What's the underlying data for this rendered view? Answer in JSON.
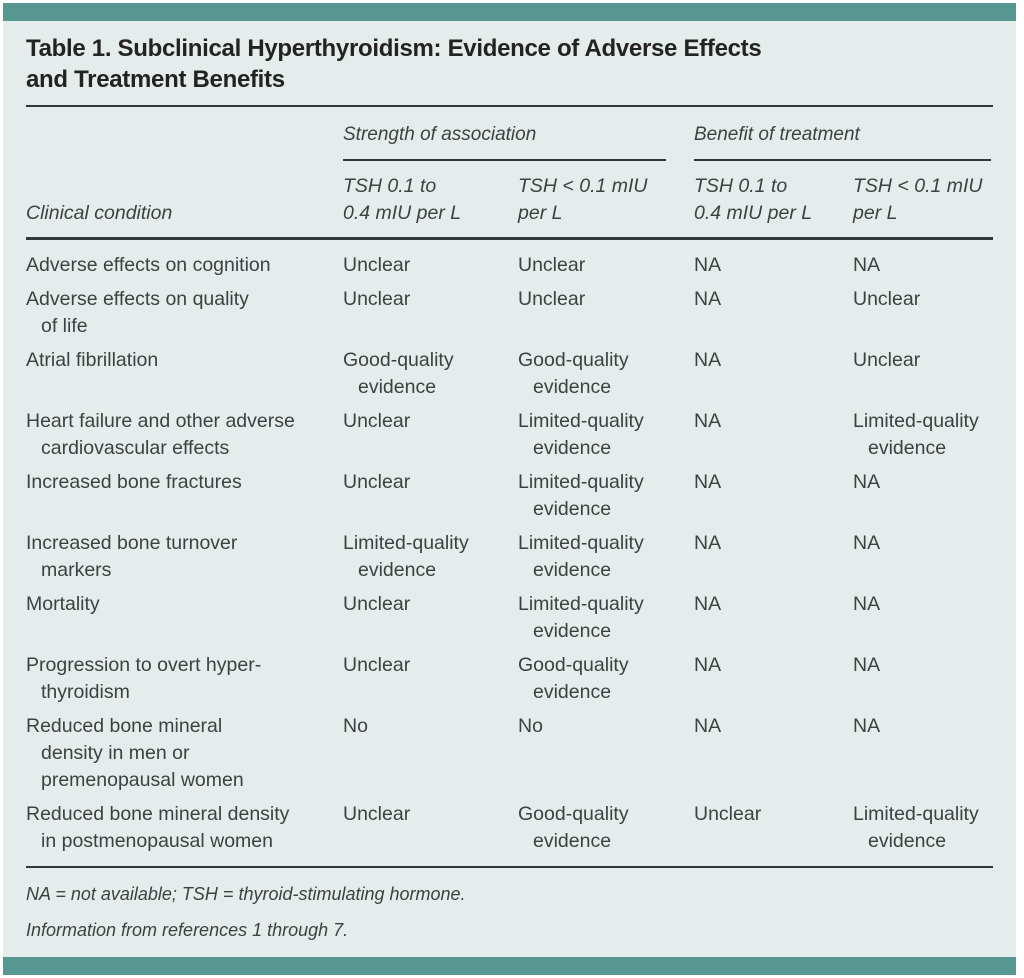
{
  "title": "Table 1. Subclinical Hyperthyroidism: Evidence of Adverse Effects\nand Treatment Benefits",
  "table": {
    "group_headers": [
      "Strength of association",
      "Benefit of treatment"
    ],
    "row_header": "Clinical condition",
    "col_headers": [
      "TSH 0.1 to\n0.4 mIU per L",
      "TSH < 0.1 mIU\nper L",
      "TSH 0.1 to\n0.4 mIU per L",
      "TSH < 0.1 mIU\nper L"
    ],
    "rows": [
      {
        "condition": "Adverse effects on cognition",
        "values": [
          "Unclear",
          "Unclear",
          "NA",
          "NA"
        ]
      },
      {
        "condition": "Adverse effects on quality\nof life",
        "values": [
          "Unclear",
          "Unclear",
          "NA",
          "Unclear"
        ]
      },
      {
        "condition": "Atrial fibrillation",
        "values": [
          "Good-quality\nevidence",
          "Good-quality\nevidence",
          "NA",
          "Unclear"
        ]
      },
      {
        "condition": "Heart failure and other adverse\ncardiovascular effects",
        "values": [
          "Unclear",
          "Limited-quality\nevidence",
          "NA",
          "Limited-quality\nevidence"
        ]
      },
      {
        "condition": "Increased bone fractures",
        "values": [
          "Unclear",
          "Limited-quality\nevidence",
          "NA",
          "NA"
        ]
      },
      {
        "condition": "Increased bone turnover\nmarkers",
        "values": [
          "Limited-quality\nevidence",
          "Limited-quality\nevidence",
          "NA",
          "NA"
        ]
      },
      {
        "condition": "Mortality",
        "values": [
          "Unclear",
          "Limited-quality\nevidence",
          "NA",
          "NA"
        ]
      },
      {
        "condition": "Progression to overt hyper-\nthyroidism",
        "values": [
          "Unclear",
          "Good-quality\nevidence",
          "NA",
          "NA"
        ]
      },
      {
        "condition": "Reduced bone mineral\ndensity in men or\npremenopausal women",
        "values": [
          "No",
          "No",
          "NA",
          "NA"
        ]
      },
      {
        "condition": "Reduced bone mineral density\nin postmenopausal women",
        "values": [
          "Unclear",
          "Good-quality\nevidence",
          "Unclear",
          "Limited-quality\nevidence"
        ]
      }
    ]
  },
  "footnotes": {
    "abbreviations": "NA = not available; TSH = thyroid-stimulating hormone.",
    "source": "Information from references 1 through 7."
  },
  "colors": {
    "accent_teal": "#579792",
    "panel_background": "#e4edeb",
    "text": "#3e4141",
    "title_text": "#232323",
    "rule": "#333737"
  }
}
